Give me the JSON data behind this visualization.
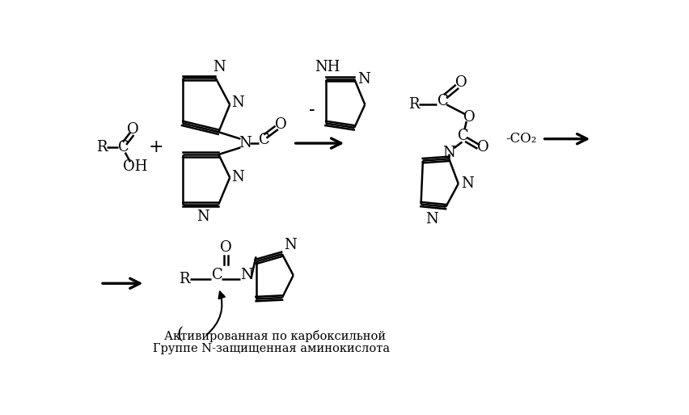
{
  "bg_color": "#ffffff",
  "figsize": [
    8.52,
    5.13
  ],
  "dpi": 100,
  "label_activated": "Активированная по карбоксильной",
  "label_protected": "Группе N-защищенная аминокислота",
  "label_co2": "-CO₂"
}
